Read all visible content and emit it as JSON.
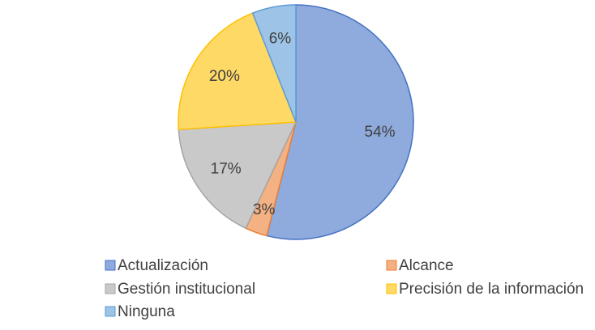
{
  "chart_data": {
    "type": "pie",
    "categories": [
      "Actualización",
      "Alcance",
      "Gestión institucional",
      "Precisión de la información",
      "Ninguna"
    ],
    "values": [
      54,
      3,
      17,
      20,
      6
    ],
    "value_labels": [
      "54%",
      "3%",
      "17%",
      "20%",
      "6%"
    ],
    "colors": [
      "#8faadc",
      "#f4b183",
      "#c9c9c9",
      "#ffd966",
      "#9dc3e6"
    ],
    "edge_colors": [
      "#4472c4",
      "#ed7d31",
      "#a5a5a5",
      "#ffc000",
      "#5b9bd5"
    ],
    "legend": "bottom"
  }
}
